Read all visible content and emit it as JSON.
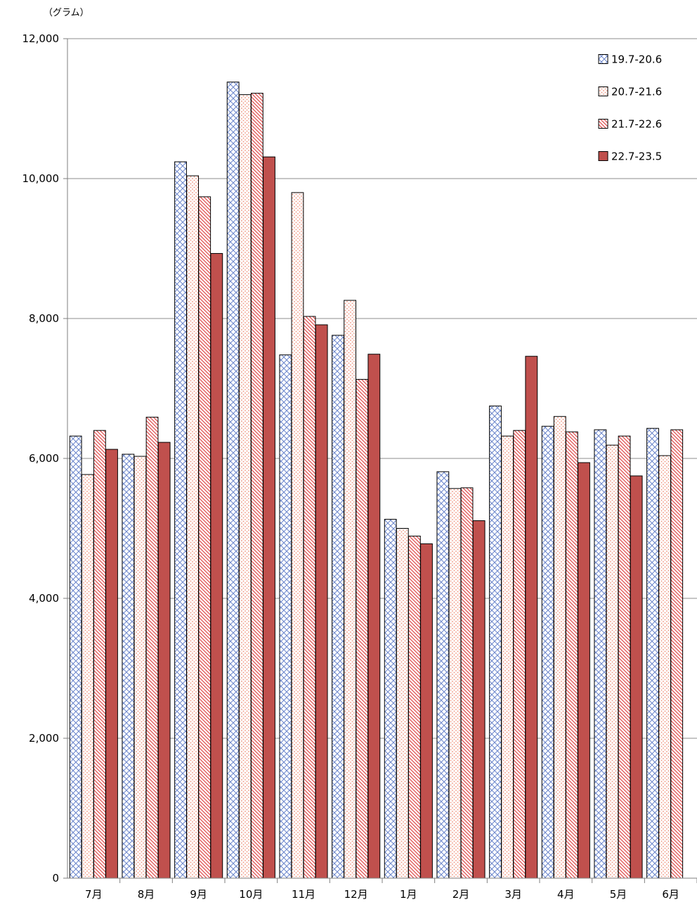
{
  "chart_data": {
    "type": "bar",
    "unit": "（グラム）",
    "categories": [
      "7月",
      "8月",
      "9月",
      "10月",
      "11月",
      "12月",
      "1月",
      "2月",
      "3月",
      "4月",
      "5月",
      "6月"
    ],
    "ylim": [
      0,
      12000
    ],
    "yticks": [
      "0",
      "2,000",
      "4,000",
      "6,000",
      "8,000",
      "10,000",
      "12,000"
    ],
    "grid": true,
    "legend_position": "top-right",
    "series": [
      {
        "name": "19.7-20.6",
        "color": "#4f6fc0",
        "pattern": "crosshatch",
        "values": [
          6320,
          6060,
          10240,
          11380,
          7480,
          7760,
          5130,
          5810,
          6750,
          6460,
          6410,
          6430
        ]
      },
      {
        "name": "20.7-21.6",
        "color": "#f4a080",
        "pattern": "dots",
        "values": [
          5770,
          6030,
          10040,
          11200,
          9800,
          8260,
          5000,
          5570,
          6320,
          6600,
          6190,
          6040
        ]
      },
      {
        "name": "21.7-22.6",
        "color": "#e46060",
        "pattern": "diagonal",
        "values": [
          6400,
          6590,
          9740,
          11220,
          8030,
          7130,
          4890,
          5580,
          6400,
          6380,
          6320,
          6410
        ]
      },
      {
        "name": "22.7-23.5",
        "color": "#c0504d",
        "pattern": "solid",
        "values": [
          6130,
          6230,
          8930,
          10310,
          7910,
          7490,
          4780,
          5110,
          7460,
          5940,
          5750,
          null
        ]
      }
    ]
  }
}
